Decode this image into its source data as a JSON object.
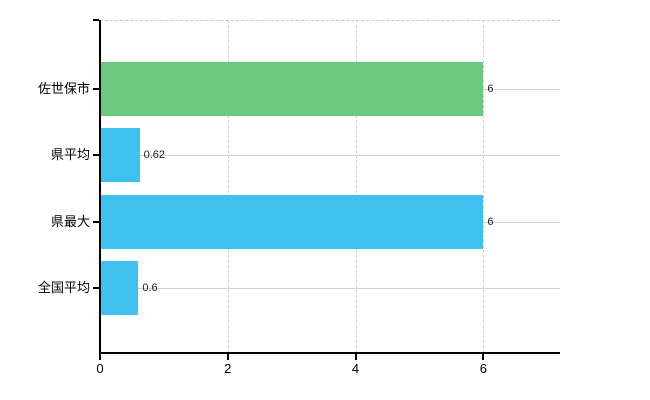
{
  "chart_data": {
    "type": "bar",
    "orientation": "horizontal",
    "title": "",
    "xlabel": "",
    "ylabel": "",
    "categories": [
      "佐世保市",
      "県平均",
      "県最大",
      "全国平均"
    ],
    "values": [
      6,
      0.62,
      6,
      0.6
    ],
    "value_labels": [
      "6",
      "0.62",
      "6",
      "0.6"
    ],
    "bar_colors": [
      "#6bc97e",
      "#3fc1f0",
      "#3fc1f0",
      "#3fc1f0"
    ],
    "x_tick_labels": [
      "0",
      "2",
      "4",
      "6"
    ],
    "x_tick_values": [
      0,
      2,
      4,
      6
    ],
    "xlim": [
      0,
      7.2
    ],
    "grid": true,
    "legend_position": "none",
    "colors": {
      "green_bar": "#6bc97e",
      "blue_bar": "#3fc1f0",
      "horizontal_gridline": "#ccd5cc",
      "vertical_gridline": "#d5cfcf",
      "dashed_top_border": "#c6c6c6",
      "axis": "#000000",
      "background": "#ffffff"
    }
  }
}
